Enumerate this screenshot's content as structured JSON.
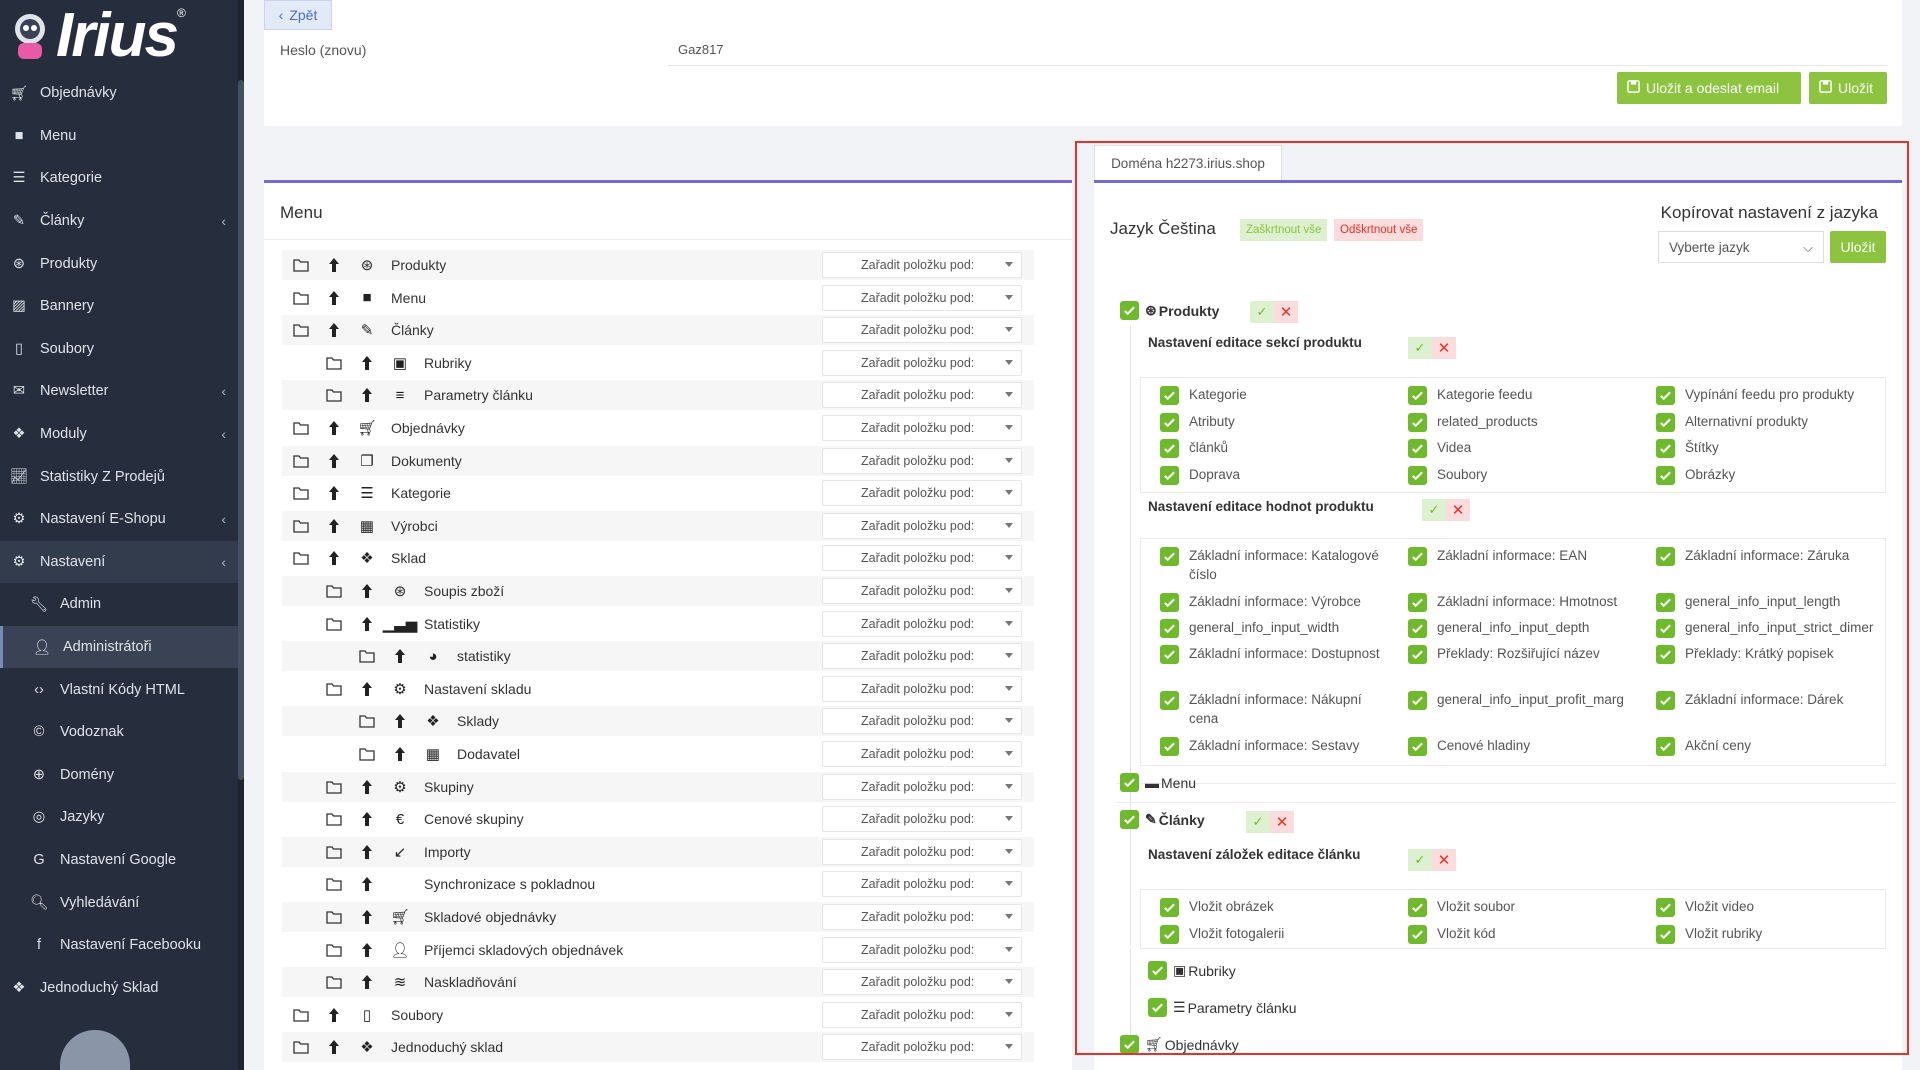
{
  "sidebar": {
    "logo": "Irius",
    "items": [
      {
        "label": "Objednávky",
        "icon": "cart-icon",
        "arrow": false
      },
      {
        "label": "Menu",
        "icon": "folder-icon",
        "arrow": false
      },
      {
        "label": "Kategorie",
        "icon": "list-icon",
        "arrow": false
      },
      {
        "label": "Články",
        "icon": "pencil-icon",
        "arrow": true
      },
      {
        "label": "Produkty",
        "icon": "basketball-icon",
        "arrow": false
      },
      {
        "label": "Bannery",
        "icon": "image-icon",
        "arrow": false
      },
      {
        "label": "Soubory",
        "icon": "file-icon",
        "arrow": false
      },
      {
        "label": "Newsletter",
        "icon": "mail-icon",
        "arrow": true
      },
      {
        "label": "Moduly",
        "icon": "cubes-icon",
        "arrow": true
      },
      {
        "label": "Statistiky Z Prodejů",
        "icon": "chart-line-icon",
        "arrow": false
      },
      {
        "label": "Nastavení E-Shopu",
        "icon": "cogs-icon",
        "arrow": true
      },
      {
        "label": "Nastavení",
        "icon": "cogs-icon",
        "arrow": true
      }
    ],
    "subitems": [
      {
        "label": "Admin",
        "icon": "wrench-icon"
      },
      {
        "label": "Administrátoři",
        "icon": "user-icon"
      },
      {
        "label": "Vlastní Kódy HTML",
        "icon": "html-icon"
      },
      {
        "label": "Vodoznak",
        "icon": "copyright-icon"
      },
      {
        "label": "Domény",
        "icon": "globe-icon"
      },
      {
        "label": "Jazyky",
        "icon": "language-icon"
      },
      {
        "label": "Nastavení Google",
        "icon": "google-icon"
      },
      {
        "label": "Vyhledávání",
        "icon": "search-icon"
      },
      {
        "label": "Nastavení Facebooku",
        "icon": "facebook-icon"
      }
    ],
    "last_item": {
      "label": "Jednoduchý Sklad",
      "icon": "cubes-icon"
    }
  },
  "top": {
    "back_label": "Zpět",
    "password_label": "Heslo (znovu)",
    "password_value": "Gaz817",
    "save_send_label": "Uložit a odeslat email",
    "save_label": "Uložit"
  },
  "menu_card": {
    "title": "Menu",
    "select_placeholder": "Zařadit položku pod:",
    "rows": [
      {
        "label": "Produkty",
        "level": 0,
        "icon": "basketball-icon"
      },
      {
        "label": "Menu",
        "level": 0,
        "icon": "folder-filled-icon"
      },
      {
        "label": "Články",
        "level": 0,
        "icon": "pencil-icon"
      },
      {
        "label": "Rubriky",
        "level": 1,
        "icon": "newspaper-icon"
      },
      {
        "label": "Parametry článku",
        "level": 1,
        "icon": "sliders-icon"
      },
      {
        "label": "Objednávky",
        "level": 0,
        "icon": "cart-icon"
      },
      {
        "label": "Dokumenty",
        "level": 0,
        "icon": "copy-icon"
      },
      {
        "label": "Kategorie",
        "level": 0,
        "icon": "list-icon"
      },
      {
        "label": "Výrobci",
        "level": 0,
        "icon": "building-icon"
      },
      {
        "label": "Sklad",
        "level": 0,
        "icon": "dropbox-icon"
      },
      {
        "label": "Soupis zboží",
        "level": 1,
        "icon": "basketball-icon"
      },
      {
        "label": "Statistiky",
        "level": 1,
        "icon": "bar-chart-icon"
      },
      {
        "label": "statistiky",
        "level": 2,
        "icon": "pie-chart-icon"
      },
      {
        "label": "Nastavení skladu",
        "level": 1,
        "icon": "cogs-icon"
      },
      {
        "label": "Sklady",
        "level": 2,
        "icon": "dropbox-icon"
      },
      {
        "label": "Dodavatel",
        "level": 2,
        "icon": "building-icon"
      },
      {
        "label": "Skupiny",
        "level": 1,
        "icon": "gear-icon"
      },
      {
        "label": "Cenové skupiny",
        "level": 1,
        "icon": "euro-icon"
      },
      {
        "label": "Importy",
        "level": 1,
        "icon": "arrow-down-left-icon"
      },
      {
        "label": "Synchronizace s pokladnou",
        "level": 1,
        "icon": ""
      },
      {
        "label": "Skladové objednávky",
        "level": 1,
        "icon": "cart-icon"
      },
      {
        "label": "Příjemci skladových objednávek",
        "level": 1,
        "icon": "user-tie-icon"
      },
      {
        "label": "Naskladňování",
        "level": 1,
        "icon": "layers-icon"
      },
      {
        "label": "Soubory",
        "level": 0,
        "icon": "file-icon"
      },
      {
        "label": "Jednoduchý sklad",
        "level": 0,
        "icon": "dropbox-icon"
      }
    ]
  },
  "right_card": {
    "domain_tab": "Doména h2273.irius.shop",
    "language_title": "Jazyk Čeština",
    "check_all_label": "Zaškrtnout vše",
    "uncheck_all_label": "Odškrtnout vše",
    "copy_title": "Kopírovat nastavení z jazyka",
    "language_select_placeholder": "Vyberte jazyk",
    "save_label": "Uložit",
    "products_label": "Produkty",
    "product_sections_title": "Nastavení editace sekcí produktu",
    "product_sections": [
      "Kategorie",
      "Kategorie feedu",
      "Vypínání feedu pro produkty",
      "Atributy",
      "related_products",
      "Alternativní produkty",
      "článků",
      "Videa",
      "Štítky",
      "Doprava",
      "Soubory",
      "Obrázky"
    ],
    "product_values_title": "Nastavení editace hodnot produktu",
    "product_values": [
      "Základní informace: Katalogové číslo",
      "Základní informace: EAN",
      "Základní informace: Záruka",
      "Základní informace: Výrobce",
      "Základní informace: Hmotnost",
      "general_info_input_length",
      "general_info_input_width",
      "general_info_input_depth",
      "general_info_input_strict_dimer",
      "Základní informace: Dostupnost",
      "Překlady: Rozšiřující název",
      "Překlady: Krátký popisek",
      "Základní informace: Nákupní cena",
      "general_info_input_profit_marg",
      "Základní informace: Dárek",
      "Základní informace: Sestavy",
      "Cenové hladiny",
      "Akční ceny"
    ],
    "menu_label": "Menu",
    "articles_label": "Články",
    "article_tabs_title": "Nastavení záložek editace článku",
    "article_tabs": [
      "Vložit obrázek",
      "Vložit soubor",
      "Vložit video",
      "Vložit fotogalerii",
      "Vložit kód",
      "Vložit rubriky"
    ],
    "rubriky_label": "Rubriky",
    "parametry_label": "Parametry článku",
    "orders_label": "Objednávky"
  },
  "colors": {
    "accent_green": "#8cc43f",
    "checkbox_green": "#6fba2c",
    "danger_red": "#e5322d",
    "sidebar_bg": "#262e3d",
    "card_border_purple": "#7469d8"
  }
}
